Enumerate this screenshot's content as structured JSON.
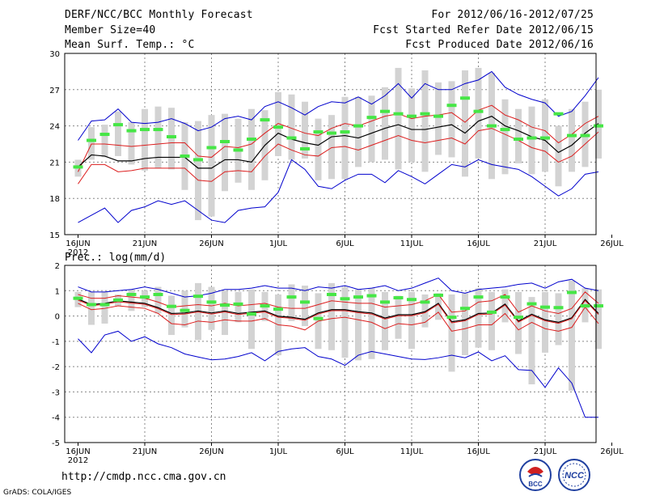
{
  "header": {
    "title": "DERF/NCC/BCC Monthly Forecast",
    "member_size": "Member Size=40",
    "variable": "Mean Surf. Temp.: °C",
    "period": "For 2012/06/16-2012/07/25",
    "fcst_started": "Fcst Started Refer Date 2012/06/15",
    "fcst_produced": "Fcst Produced Date 2012/06/16"
  },
  "footer": {
    "url": "http://cmdp.ncc.cma.gov.cn",
    "credit": "GrADS: COLA/IGES",
    "logo_bcc": "BCC",
    "logo_ncc": "NCC"
  },
  "colors": {
    "bar": "#d3d3d3",
    "green": "#46e646",
    "envelope": "#0000cd",
    "spread": "#dc1e1e",
    "mean": "#000000",
    "grid": "#888888"
  },
  "chart_data": [
    {
      "type": "line",
      "title": "Mean Surf. Temp.: °C",
      "x_start": "16JUN2012",
      "days": 40,
      "x_tick_labels": [
        "16JUN",
        "21JUN",
        "26JUN",
        "1JUL",
        "6JUL",
        "11JUL",
        "16JUL",
        "21JUL",
        "26JUL"
      ],
      "x_tick_sublabel": "2012",
      "ylim": [
        15,
        30
      ],
      "yticks": [
        15,
        18,
        21,
        24,
        27,
        30
      ],
      "series": [
        {
          "name": "max",
          "values": [
            16,
            16.6,
            17.2,
            16,
            17,
            17.3,
            17.8,
            17.5,
            17.8,
            17,
            16.2,
            16,
            17,
            17.2,
            17.3,
            18.5,
            21.2,
            20.4,
            19,
            18.8,
            19.5,
            20,
            20,
            19.3,
            20.3,
            19.8,
            19.2,
            20,
            20.8,
            20.6,
            21.2,
            20.8,
            20.6,
            20.4,
            19.8,
            19,
            18.2,
            18.8,
            20,
            20.2
          ]
        },
        {
          "name": "max",
          "values": [
            22.8,
            24.4,
            24.5,
            25.4,
            24.3,
            24.2,
            24.3,
            24.6,
            24.2,
            23.6,
            23.9,
            24.6,
            24.8,
            24.5,
            25.6,
            26,
            25.5,
            24.9,
            25.6,
            26,
            25.9,
            26.4,
            25.8,
            26.5,
            27.5,
            26.3,
            27.5,
            27,
            27,
            27.5,
            27.8,
            28.5,
            27.2,
            26.6,
            26.2,
            25.9,
            24.8,
            25.2,
            26.5,
            28
          ]
        },
        {
          "name": "spread_low",
          "values": [
            19.2,
            20.8,
            20.8,
            20.2,
            20.3,
            20.5,
            20.5,
            20.5,
            20.5,
            19.5,
            19.4,
            20.2,
            20.3,
            20.2,
            21.5,
            22.5,
            22,
            21.6,
            21.5,
            22.2,
            22.3,
            22,
            22.4,
            22.8,
            23.2,
            22.8,
            22.6,
            22.8,
            23,
            22.5,
            23.6,
            23.8,
            23.3,
            22.8,
            22.2,
            21.9,
            21,
            21.5,
            22.5,
            23.5
          ]
        },
        {
          "name": "spread_high",
          "values": [
            20.2,
            22.5,
            22.5,
            22.4,
            22.3,
            22.4,
            22.5,
            22.6,
            22.6,
            21.5,
            21.4,
            22.3,
            22.2,
            22.5,
            23.4,
            24.2,
            23.8,
            23.4,
            23.2,
            23.8,
            24.2,
            24,
            24.4,
            24.8,
            25,
            24.6,
            24.8,
            24.9,
            25.1,
            24.3,
            25.3,
            25.7,
            24.9,
            24.5,
            23.9,
            23.6,
            22.6,
            23.3,
            24.2,
            24.8
          ]
        },
        {
          "name": "ensemble_mean",
          "values": [
            20.6,
            21.6,
            21.5,
            21.1,
            21.1,
            21.3,
            21.4,
            21.4,
            21.4,
            20.5,
            20.5,
            21.2,
            21.2,
            21,
            22.4,
            23.4,
            22.9,
            22.6,
            22.4,
            23.1,
            23.2,
            23,
            23.4,
            23.8,
            24.1,
            23.7,
            23.7,
            23.9,
            24.1,
            23.4,
            24.4,
            24.8,
            24,
            23.6,
            23.1,
            22.8,
            21.8,
            22.4,
            23.4,
            24.2
          ]
        },
        {
          "name": "observed_green",
          "values": [
            20.6,
            22.8,
            23.3,
            24.1,
            23.6,
            23.7,
            23.7,
            23.1,
            21.5,
            21.2,
            22.2,
            22.7,
            22,
            22.9,
            24.5,
            23.9,
            23,
            22.1,
            23.5,
            23.4,
            23.5,
            24,
            24.7,
            25.2,
            25,
            24.8,
            25,
            24.8,
            25.7,
            26.3,
            25.2,
            24,
            23.7,
            22.9,
            23,
            23,
            25,
            23.2,
            23.2,
            24
          ]
        }
      ],
      "box_low": [
        19.8,
        21.2,
        21.4,
        21.5,
        20.8,
        20.3,
        20.5,
        20.4,
        18.7,
        16.2,
        16.5,
        18.6,
        19.3,
        18.7,
        19.5,
        21.5,
        21.2,
        21.3,
        19.5,
        19.6,
        19.6,
        20.6,
        21,
        21.2,
        20.4,
        21,
        20.2,
        21.6,
        21.4,
        19.8,
        21.3,
        19.6,
        20,
        20.9,
        20,
        20.2,
        19,
        20.2,
        20.6,
        21.3
      ],
      "box_high": [
        21.2,
        23.9,
        24.1,
        25.2,
        24.3,
        25.4,
        25.6,
        25.5,
        24.3,
        24.4,
        24.9,
        25,
        24.6,
        25.4,
        25.3,
        26.8,
        26.6,
        26,
        24.6,
        24.9,
        26.4,
        26.4,
        26.5,
        27.2,
        28.8,
        27.1,
        28.6,
        27.6,
        27.7,
        28.6,
        28.8,
        28.4,
        26.2,
        25.4,
        25.6,
        26.2,
        24,
        25.4,
        26,
        27
      ]
    },
    {
      "type": "line",
      "title": "Prec.: log(mm/d)",
      "x_start": "16JUN2012",
      "days": 40,
      "x_tick_labels": [
        "16JUN",
        "21JUN",
        "26JUN",
        "1JUL",
        "6JUL",
        "11JUL",
        "16JUL",
        "21JUL",
        "26JUL"
      ],
      "x_tick_sublabel": "2012",
      "ylim": [
        -5,
        2
      ],
      "yticks": [
        -5,
        -4,
        -3,
        -2,
        -1,
        0,
        1,
        2
      ],
      "series": [
        {
          "name": "max",
          "values": [
            -0.9,
            -1.45,
            -0.75,
            -0.6,
            -1,
            -0.82,
            -1.1,
            -1.25,
            -1.5,
            -1.62,
            -1.73,
            -1.7,
            -1.6,
            -1.45,
            -1.77,
            -1.4,
            -1.3,
            -1.25,
            -1.6,
            -1.7,
            -1.95,
            -1.55,
            -1.4,
            -1.5,
            -1.6,
            -1.7,
            -1.72,
            -1.65,
            -1.55,
            -1.65,
            -1.42,
            -1.77,
            -1.57,
            -2.12,
            -2.15,
            -2.82,
            -2.05,
            -2.65,
            -4,
            -4
          ]
        },
        {
          "name": "max",
          "values": [
            1.15,
            0.95,
            0.95,
            1,
            1.05,
            1.15,
            1.05,
            0.9,
            0.75,
            0.8,
            0.9,
            1.05,
            1.05,
            1.1,
            1.2,
            1.1,
            1.1,
            1,
            1.15,
            1.1,
            1.2,
            1.05,
            1.1,
            1.2,
            1,
            1.1,
            1.3,
            1.5,
            1,
            0.9,
            1.05,
            1.1,
            1.15,
            1.25,
            1.3,
            1.1,
            1.35,
            1.45,
            1.1,
            1
          ]
        },
        {
          "name": "spread_low",
          "values": [
            0.5,
            0.25,
            0.3,
            0.4,
            0.35,
            0.3,
            0.1,
            -0.3,
            -0.35,
            -0.2,
            -0.25,
            -0.15,
            -0.2,
            -0.2,
            -0.1,
            -0.35,
            -0.4,
            -0.55,
            -0.2,
            -0.1,
            -0.05,
            -0.15,
            -0.25,
            -0.5,
            -0.3,
            -0.35,
            -0.25,
            0.15,
            -0.6,
            -0.5,
            -0.35,
            -0.35,
            0.1,
            -0.55,
            -0.25,
            -0.5,
            -0.6,
            -0.45,
            0.35,
            -0.3
          ]
        },
        {
          "name": "spread_high",
          "values": [
            0.85,
            0.7,
            0.7,
            0.8,
            0.75,
            0.7,
            0.55,
            0.35,
            0.4,
            0.45,
            0.4,
            0.5,
            0.4,
            0.45,
            0.5,
            0.35,
            0.3,
            0.3,
            0.45,
            0.6,
            0.55,
            0.5,
            0.5,
            0.35,
            0.4,
            0.45,
            0.6,
            0.85,
            0.15,
            0.2,
            0.55,
            0.6,
            0.85,
            0.15,
            0.4,
            0.2,
            0.1,
            0.3,
            0.95,
            0.5
          ]
        },
        {
          "name": "ensemble_mean",
          "values": [
            0.67,
            0.45,
            0.5,
            0.6,
            0.55,
            0.5,
            0.33,
            0.1,
            0.12,
            0.2,
            0.12,
            0.2,
            0.1,
            0.15,
            0.2,
            -0.01,
            -0.05,
            -0.13,
            0.12,
            0.25,
            0.25,
            0.17,
            0.12,
            -0.08,
            0.05,
            0.05,
            0.17,
            0.5,
            -0.23,
            -0.15,
            0.1,
            0.12,
            0.47,
            -0.2,
            0.07,
            -0.15,
            -0.25,
            -0.07,
            0.65,
            0.1
          ]
        },
        {
          "name": "observed_green",
          "values": [
            0.7,
            0.45,
            0.45,
            0.63,
            0.85,
            0.75,
            0.85,
            0.38,
            0.22,
            0.78,
            0.55,
            0.43,
            0.47,
            0.08,
            0.4,
            0.27,
            0.75,
            0.55,
            -0.1,
            0.85,
            0.68,
            0.75,
            0.8,
            0.55,
            0.72,
            0.65,
            0.55,
            0.82,
            -0.05,
            0.3,
            0.75,
            0.15,
            0.75,
            -0.05,
            0.48,
            0.35,
            0.33,
            0.93,
            0.4,
            0.4
          ]
        },
        {
          "name": "min_flat_note",
          "values": []
        }
      ],
      "box_low": [
        0.35,
        -0.35,
        -0.3,
        0.4,
        0.2,
        0.35,
        0.1,
        -0.75,
        -0.45,
        -0.95,
        -0.55,
        -0.75,
        -0.25,
        -1.3,
        -0.2,
        -1.55,
        -0.2,
        -0.4,
        -1.3,
        -1.35,
        -1.65,
        -1.75,
        -1.7,
        -1.35,
        -0.9,
        -1.3,
        -0.45,
        -0.15,
        -2.2,
        -1.55,
        -1.25,
        -1.35,
        -0.25,
        -1.5,
        -2.7,
        -1.45,
        -1.15,
        -2.95,
        -0.25,
        -1.3
      ],
      "box_high": [
        0.95,
        0.95,
        0.95,
        0.85,
        1.05,
        1.0,
        1.15,
        0.8,
        1.0,
        1.3,
        1.15,
        1.0,
        0.95,
        1.05,
        0.95,
        0.85,
        1.25,
        1.2,
        0.9,
        1.3,
        1.15,
        1.05,
        1.1,
        0.95,
        0.8,
        0.95,
        0.85,
        0.9,
        0.85,
        0.9,
        1.1,
        0.95,
        1.05,
        0.95,
        0.75,
        0.95,
        0.9,
        1.4,
        1.1,
        1.05
      ]
    }
  ]
}
